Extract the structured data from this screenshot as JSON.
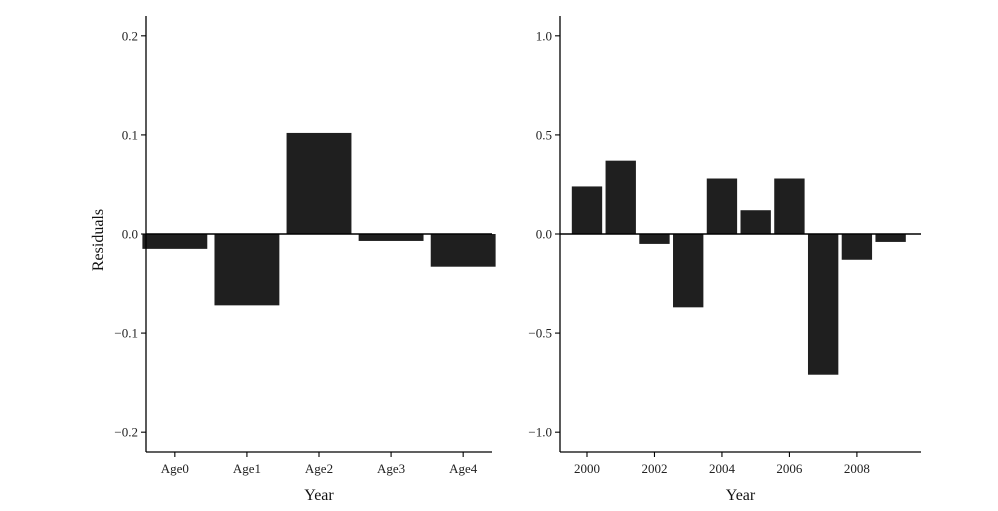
{
  "chart_data": [
    {
      "type": "bar",
      "title": "",
      "xlabel": "Year",
      "ylabel": "Residuals",
      "categories": [
        "Age0",
        "Age1",
        "Age2",
        "Age3",
        "Age4"
      ],
      "values": [
        -0.015,
        -0.072,
        0.102,
        -0.007,
        -0.033
      ],
      "ylim": [
        -0.22,
        0.22
      ],
      "yticks": [
        -0.2,
        -0.1,
        0.0,
        0.1,
        0.2
      ],
      "ytick_labels": [
        "−0.2",
        "−0.1",
        "0.0",
        "0.1",
        "0.2"
      ],
      "bar_color": "#1f1f1f",
      "grid": false
    },
    {
      "type": "bar",
      "title": "",
      "xlabel": "Year",
      "ylabel": "",
      "x": [
        2000,
        2001,
        2002,
        2003,
        2004,
        2005,
        2006,
        2007,
        2008,
        2009
      ],
      "values": [
        0.24,
        0.37,
        -0.05,
        -0.37,
        0.28,
        0.12,
        0.28,
        -0.71,
        -0.13,
        -0.04
      ],
      "xlim": [
        1999.2,
        2009.9
      ],
      "ylim": [
        -1.1,
        1.1
      ],
      "xticks": [
        2000,
        2002,
        2004,
        2006,
        2008
      ],
      "xtick_labels": [
        "2000",
        "2002",
        "2004",
        "2006",
        "2008"
      ],
      "yticks": [
        -1.0,
        -0.5,
        0.0,
        0.5,
        1.0
      ],
      "ytick_labels": [
        "−1.0",
        "−0.5",
        "0.0",
        "0.5",
        "1.0"
      ],
      "bar_color": "#1f1f1f",
      "grid": false
    }
  ]
}
